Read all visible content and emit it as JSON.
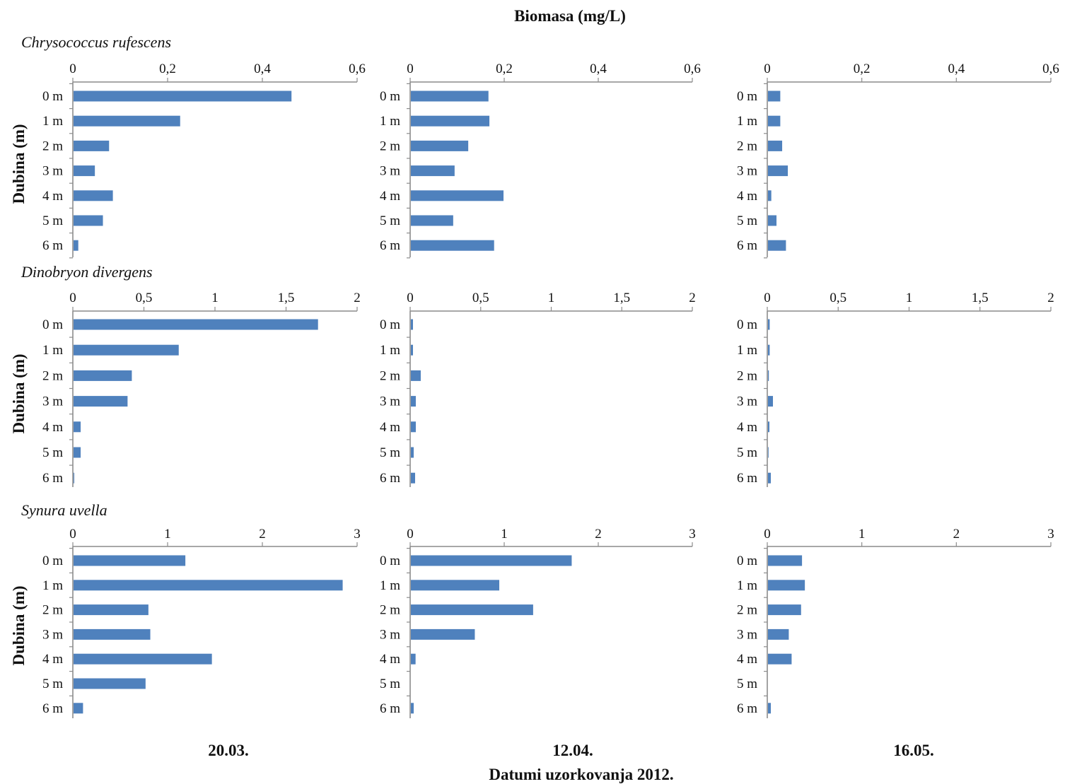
{
  "figure": {
    "title": "Biomasa (mg/L)",
    "ylabel": "Dubina (m)",
    "xlabel": "Datumi uzorkovanja 2012.",
    "dates": [
      "20.03.",
      "12.04.",
      "16.05."
    ],
    "bar_color": "#4f81bd",
    "axis_color": "#8c8c8c"
  },
  "chart_data": [
    {
      "type": "bar",
      "species": "Chrysococcus rufescens",
      "date": "20.03.",
      "categories": [
        "0 m",
        "1 m",
        "2 m",
        "3 m",
        "4 m",
        "5 m",
        "6 m"
      ],
      "values": [
        0.46,
        0.225,
        0.075,
        0.045,
        0.083,
        0.062,
        0.01
      ],
      "xlim": [
        0,
        0.6
      ],
      "ticks": [
        0,
        0.2,
        0.4,
        0.6
      ],
      "tick_labels": [
        "0",
        "0,2",
        "0,4",
        "0,6"
      ]
    },
    {
      "type": "bar",
      "species": "Chrysococcus rufescens",
      "date": "12.04.",
      "categories": [
        "0 m",
        "1 m",
        "2 m",
        "3 m",
        "4 m",
        "5 m",
        "6 m"
      ],
      "values": [
        0.165,
        0.167,
        0.122,
        0.093,
        0.197,
        0.09,
        0.177
      ],
      "xlim": [
        0,
        0.6
      ],
      "ticks": [
        0,
        0.2,
        0.4,
        0.6
      ],
      "tick_labels": [
        "0",
        "0,2",
        "0,4",
        "0,6"
      ]
    },
    {
      "type": "bar",
      "species": "Chrysococcus rufescens",
      "date": "16.05.",
      "categories": [
        "0 m",
        "1 m",
        "2 m",
        "3 m",
        "4 m",
        "5 m",
        "6 m"
      ],
      "values": [
        0.026,
        0.026,
        0.03,
        0.042,
        0.007,
        0.018,
        0.038
      ],
      "xlim": [
        0,
        0.6
      ],
      "ticks": [
        0,
        0.2,
        0.4,
        0.6
      ],
      "tick_labels": [
        "0",
        "0,2",
        "0,4",
        "0,6"
      ]
    },
    {
      "type": "bar",
      "species": "Dinobryon divergens",
      "date": "20.03.",
      "categories": [
        "0 m",
        "1 m",
        "2 m",
        "3 m",
        "4 m",
        "5 m",
        "6 m"
      ],
      "values": [
        1.72,
        0.74,
        0.41,
        0.38,
        0.05,
        0.05,
        0.005
      ],
      "xlim": [
        0,
        2
      ],
      "ticks": [
        0,
        0.5,
        1,
        1.5,
        2
      ],
      "tick_labels": [
        "0",
        "0,5",
        "1",
        "1,5",
        "2"
      ]
    },
    {
      "type": "bar",
      "species": "Dinobryon divergens",
      "date": "12.04.",
      "categories": [
        "0 m",
        "1 m",
        "2 m",
        "3 m",
        "4 m",
        "5 m",
        "6 m"
      ],
      "values": [
        0.015,
        0.015,
        0.07,
        0.035,
        0.035,
        0.02,
        0.03
      ],
      "xlim": [
        0,
        2
      ],
      "ticks": [
        0,
        0.5,
        1,
        1.5,
        2
      ],
      "tick_labels": [
        "0",
        "0,5",
        "1",
        "1,5",
        "2"
      ]
    },
    {
      "type": "bar",
      "species": "Dinobryon divergens",
      "date": "16.05.",
      "categories": [
        "0 m",
        "1 m",
        "2 m",
        "3 m",
        "4 m",
        "5 m",
        "6 m"
      ],
      "values": [
        0.012,
        0.012,
        0.006,
        0.035,
        0.01,
        0.004,
        0.02
      ],
      "xlim": [
        0,
        2
      ],
      "ticks": [
        0,
        0.5,
        1,
        1.5,
        2
      ],
      "tick_labels": [
        "0",
        "0,5",
        "1",
        "1,5",
        "2"
      ]
    },
    {
      "type": "bar",
      "species": "Synura uvella",
      "date": "20.03.",
      "categories": [
        "0 m",
        "1 m",
        "2 m",
        "3 m",
        "4 m",
        "5 m",
        "6 m"
      ],
      "values": [
        1.18,
        2.84,
        0.79,
        0.81,
        1.46,
        0.76,
        0.1
      ],
      "xlim": [
        0,
        3
      ],
      "ticks": [
        0,
        1,
        2,
        3
      ],
      "tick_labels": [
        "0",
        "1",
        "2",
        "3"
      ]
    },
    {
      "type": "bar",
      "species": "Synura uvella",
      "date": "12.04.",
      "categories": [
        "0 m",
        "1 m",
        "2 m",
        "3 m",
        "4 m",
        "5 m",
        "6 m"
      ],
      "values": [
        1.71,
        0.94,
        1.3,
        0.68,
        0.05,
        0,
        0.03
      ],
      "xlim": [
        0,
        3
      ],
      "ticks": [
        0,
        1,
        2,
        3
      ],
      "tick_labels": [
        "0",
        "1",
        "2",
        "3"
      ]
    },
    {
      "type": "bar",
      "species": "Synura uvella",
      "date": "16.05.",
      "categories": [
        "0 m",
        "1 m",
        "2 m",
        "3 m",
        "4 m",
        "5 m",
        "6 m"
      ],
      "values": [
        0.36,
        0.39,
        0.35,
        0.22,
        0.25,
        0,
        0.03
      ],
      "xlim": [
        0,
        3
      ],
      "ticks": [
        0,
        1,
        2,
        3
      ],
      "tick_labels": [
        "0",
        "1",
        "2",
        "3"
      ]
    }
  ]
}
